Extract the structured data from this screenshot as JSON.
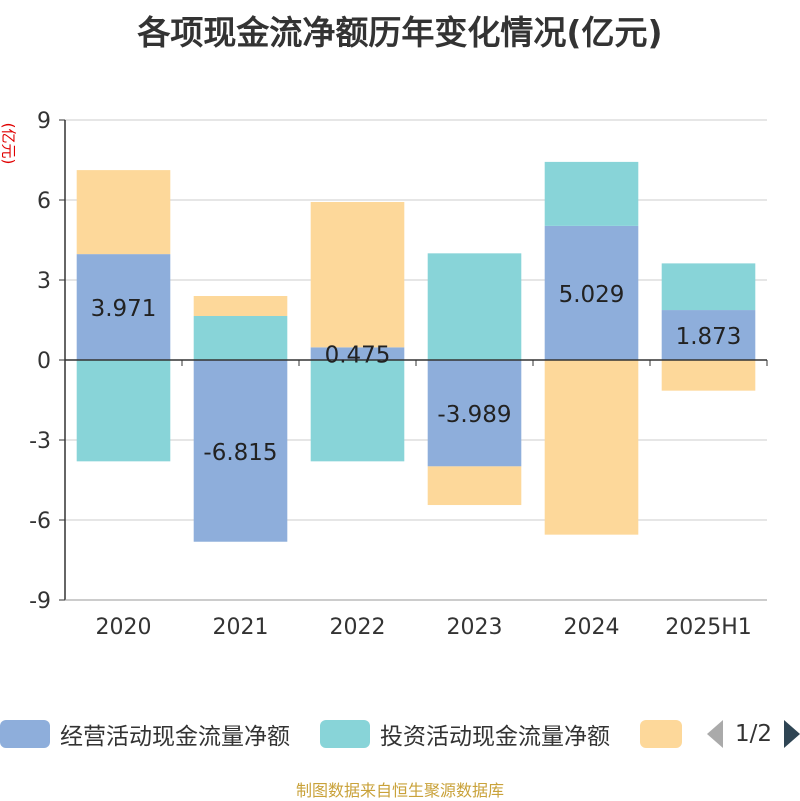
{
  "title": "各项现金流净额历年变化情况(亿元)",
  "unit_label": "(亿元)",
  "footer": "制图数据来自恒生聚源数据库",
  "legend": {
    "page": "1/2",
    "items": [
      {
        "label": "经营活动现金流量净额",
        "color": "#8eaedb"
      },
      {
        "label": "投资活动现金流量净额",
        "color": "#88d4d8"
      },
      {
        "label": "",
        "color": "#fdd89a"
      }
    ]
  },
  "chart_data": {
    "type": "bar",
    "stacked": true,
    "categories": [
      "2020",
      "2021",
      "2022",
      "2023",
      "2024",
      "2025H1"
    ],
    "ylim": [
      -9,
      9
    ],
    "yticks": [
      -9,
      -6,
      -3,
      0,
      3,
      6,
      9
    ],
    "grid": true,
    "legend_position": "bottom",
    "series": [
      {
        "name": "经营活动现金流量净额",
        "color": "#8eaedb",
        "values": [
          3.971,
          -6.815,
          0.475,
          -3.989,
          5.029,
          1.873
        ],
        "labels": [
          "3.971",
          "-6.815",
          "0.475",
          "-3.989",
          "5.029",
          "1.873"
        ]
      },
      {
        "name": "投资活动现金流量净额",
        "color": "#88d4d8",
        "values": [
          -3.8,
          1.65,
          -3.8,
          4.0,
          2.4,
          1.75
        ]
      },
      {
        "name": "",
        "color": "#fdd89a",
        "values": [
          3.15,
          0.75,
          5.45,
          -1.45,
          -6.55,
          -1.15
        ]
      }
    ]
  }
}
